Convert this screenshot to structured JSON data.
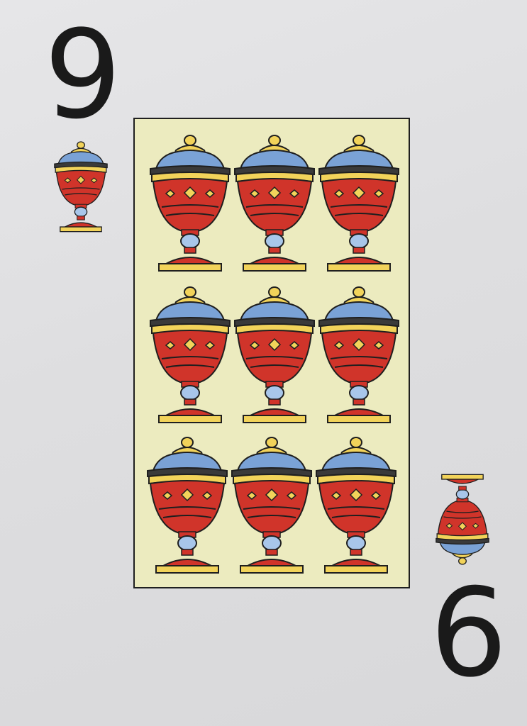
{
  "card": {
    "index_top": "9",
    "index_bottom": "9",
    "suit_icon": "cup-icon",
    "pip_count": 9,
    "colors": {
      "panel": "#ecebbf",
      "cup_red": "#d0342a",
      "cup_blue": "#7aa2d6",
      "cup_gold": "#f2d35a",
      "outline": "#1f1f1f"
    }
  }
}
